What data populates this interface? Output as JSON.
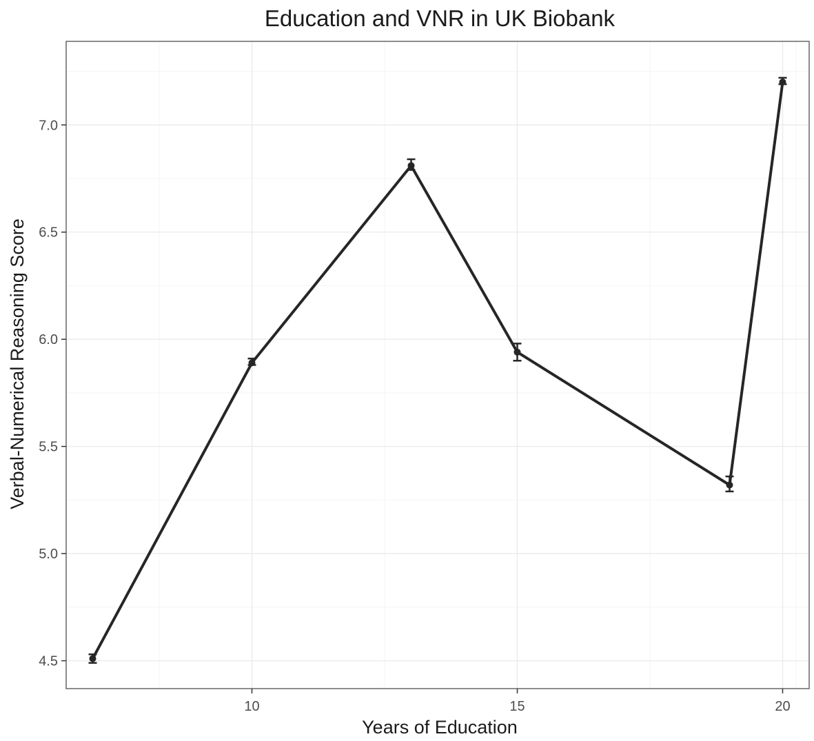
{
  "chart_data": {
    "type": "line",
    "title": "Education and VNR in UK Biobank",
    "xlabel": "Years of Education",
    "ylabel": "Verbal-Numerical Reasoning Score",
    "xlim": [
      6.5,
      20.5
    ],
    "ylim": [
      4.37,
      7.39
    ],
    "x_ticks": [
      10,
      15,
      20
    ],
    "x_tick_labels": [
      "10",
      "15",
      "20"
    ],
    "y_ticks": [
      4.5,
      5.0,
      5.5,
      6.0,
      6.5,
      7.0
    ],
    "y_tick_labels": [
      "4.5",
      "5.0",
      "5.5",
      "6.0",
      "6.5",
      "7.0"
    ],
    "grid": true,
    "series": [
      {
        "x": [
          7,
          10,
          13,
          15,
          19,
          20
        ],
        "y": [
          4.51,
          5.89,
          6.81,
          5.94,
          5.32,
          7.2
        ],
        "error_low": [
          4.49,
          5.88,
          6.79,
          5.9,
          5.29,
          7.19
        ],
        "error_high": [
          4.53,
          5.91,
          6.84,
          5.98,
          5.36,
          7.22
        ]
      }
    ],
    "colors": {
      "line": "#262626",
      "panel_border": "#666666",
      "grid_major": "#ebebeb",
      "grid_minor": "#f5f5f5"
    }
  }
}
